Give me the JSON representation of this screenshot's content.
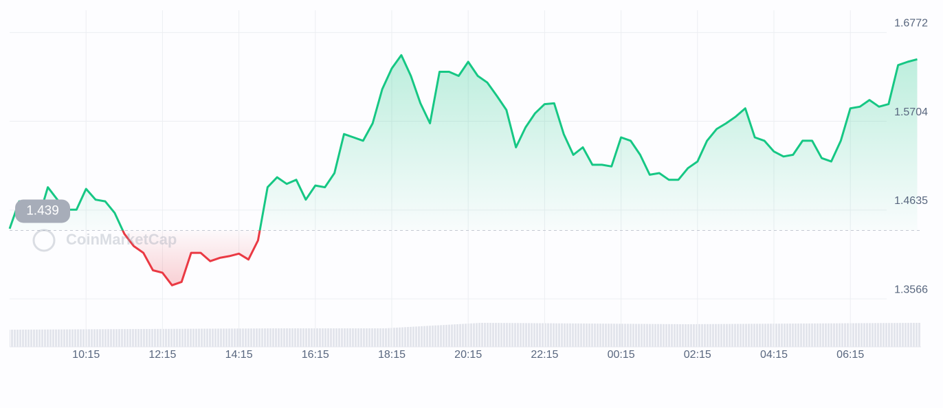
{
  "chart_data": {
    "type": "line",
    "categories": [
      "08:15",
      "08:30",
      "08:45",
      "09:00",
      "09:15",
      "09:30",
      "09:45",
      "10:00",
      "10:15",
      "10:30",
      "10:45",
      "11:00",
      "11:15",
      "11:30",
      "11:45",
      "12:00",
      "12:15",
      "12:30",
      "12:45",
      "13:00",
      "13:15",
      "13:30",
      "13:45",
      "14:00",
      "14:15",
      "14:30",
      "14:45",
      "15:00",
      "15:15",
      "15:30",
      "15:45",
      "16:00",
      "16:15",
      "16:30",
      "16:45",
      "17:00",
      "17:15",
      "17:30",
      "17:45",
      "18:00",
      "18:15",
      "18:30",
      "18:45",
      "19:00",
      "19:15",
      "19:30",
      "19:45",
      "20:00",
      "20:15",
      "20:30",
      "20:45",
      "21:00",
      "21:15",
      "21:30",
      "21:45",
      "22:00",
      "22:15",
      "22:30",
      "22:45",
      "23:00",
      "23:15",
      "23:30",
      "23:45",
      "00:00",
      "00:15",
      "00:30",
      "00:45",
      "01:00",
      "01:15",
      "01:30",
      "01:45",
      "02:00",
      "02:15",
      "02:30",
      "02:45",
      "03:00",
      "03:15",
      "03:30",
      "03:45",
      "04:00",
      "04:15",
      "04:30",
      "04:45",
      "05:00",
      "05:15",
      "05:30",
      "05:45",
      "06:00",
      "06:15",
      "06:30",
      "06:45",
      "07:00",
      "07:15",
      "07:30",
      "07:45",
      "08:00"
    ],
    "values": [
      1.441,
      1.474,
      1.474,
      1.452,
      1.491,
      1.476,
      1.464,
      1.464,
      1.489,
      1.476,
      1.474,
      1.46,
      1.435,
      1.42,
      1.412,
      1.391,
      1.388,
      1.373,
      1.377,
      1.412,
      1.412,
      1.402,
      1.406,
      1.408,
      1.411,
      1.404,
      1.427,
      1.491,
      1.503,
      1.495,
      1.5,
      1.476,
      1.493,
      1.491,
      1.508,
      1.555,
      1.551,
      1.547,
      1.568,
      1.609,
      1.634,
      1.65,
      1.625,
      1.592,
      1.568,
      1.63,
      1.63,
      1.625,
      1.642,
      1.625,
      1.617,
      1.601,
      1.584,
      1.539,
      1.563,
      1.58,
      1.591,
      1.592,
      1.555,
      1.53,
      1.539,
      1.518,
      1.518,
      1.516,
      1.551,
      1.547,
      1.53,
      1.506,
      1.508,
      1.5,
      1.5,
      1.514,
      1.522,
      1.547,
      1.561,
      1.568,
      1.576,
      1.586,
      1.551,
      1.547,
      1.534,
      1.528,
      1.53,
      1.547,
      1.547,
      1.526,
      1.522,
      1.547,
      1.586,
      1.588,
      1.596,
      1.588,
      1.591,
      1.638,
      1.642,
      1.645
    ],
    "baseline": 1.439,
    "up_color": "#16c784",
    "down_color": "#ea3943",
    "ylim": [
      1.336,
      1.704
    ],
    "yticks": [
      1.6772,
      1.5704,
      1.4635,
      1.3566
    ],
    "xticks": [
      "10:15",
      "12:15",
      "14:15",
      "16:15",
      "18:15",
      "20:15",
      "22:15",
      "00:15",
      "02:15",
      "04:15",
      "06:15"
    ],
    "grid": true,
    "watermark": "CoinMarketCap"
  }
}
